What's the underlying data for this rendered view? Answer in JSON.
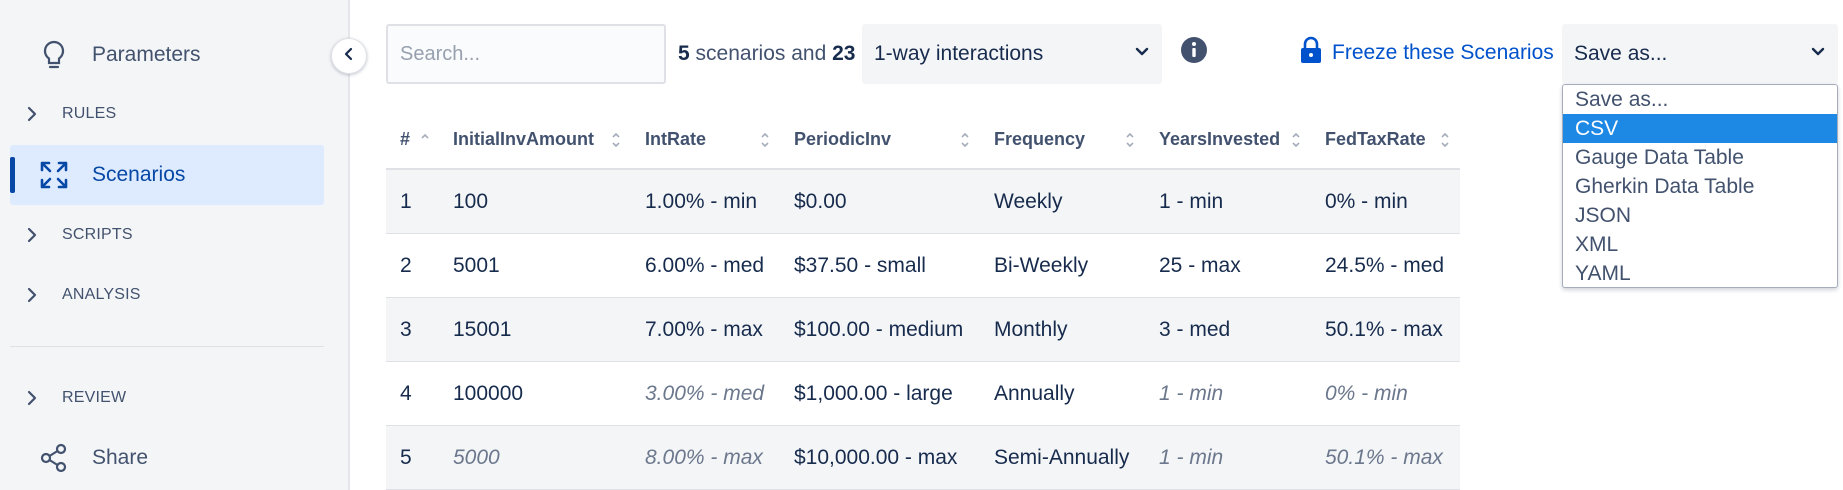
{
  "sidebar": {
    "parameters_label": "Parameters",
    "rules_label": "RULES",
    "scenarios_label": "Scenarios",
    "scripts_label": "SCRIPTS",
    "analysis_label": "ANALYSIS",
    "review_label": "REVIEW",
    "share_label": "Share",
    "icons": {
      "parameters": "lightbulb-icon",
      "scenarios": "expand-arrows-icon",
      "share": "share-icon",
      "section": "chevron-right-icon",
      "collapse": "chevron-left-icon"
    }
  },
  "toolbar": {
    "search_placeholder": "Search...",
    "scenario_count": "5",
    "scenarios_and_text": "scenarios and",
    "interaction_count": "23",
    "interaction_select": "1-way interactions",
    "freeze_label": "Freeze these Scenarios",
    "save_select": "Save as..."
  },
  "save_options": [
    "Save as...",
    "CSV",
    "Gauge Data Table",
    "Gherkin Data Table",
    "JSON",
    "XML",
    "YAML"
  ],
  "save_selected_index": 1,
  "table": {
    "columns": [
      "#",
      "InitialInvAmount",
      "IntRate",
      "PeriodicInv",
      "Frequency",
      "YearsInvested",
      "FedTaxRate"
    ],
    "rows": [
      [
        "1",
        "100",
        "1.00% - min",
        "$0.00",
        "Weekly",
        "1 - min",
        "0% - min"
      ],
      [
        "2",
        "5001",
        "6.00% - med",
        "$37.50 - small",
        "Bi-Weekly",
        "25 - max",
        "24.5% - med"
      ],
      [
        "3",
        "15001",
        "7.00% - max",
        "$100.00 - medium",
        "Monthly",
        "3 - med",
        "50.1% - max"
      ],
      [
        "4",
        "100000",
        "3.00% - med",
        "$1,000.00 - large",
        "Annually",
        "1 - min",
        "0% - min"
      ],
      [
        "5",
        "5000",
        "8.00% - max",
        "$10,000.00 - max",
        "Semi-Annually",
        "1 - min",
        "50.1% - max"
      ]
    ]
  },
  "colors": {
    "accent": "#0052cc",
    "active_bg": "#deebff",
    "selected_option": "#1e88e5",
    "row_shade": "#f4f5f7"
  }
}
